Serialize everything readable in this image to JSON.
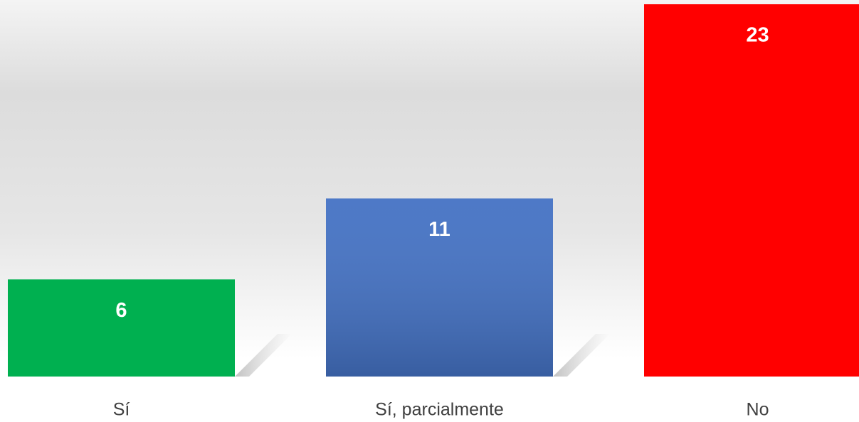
{
  "chart_data": {
    "type": "bar",
    "categories": [
      "Sí",
      "Sí, parcialmente",
      "No"
    ],
    "values": [
      6,
      11,
      23
    ],
    "colors": [
      "#00b050",
      "#4472c4",
      "#ff0000"
    ],
    "ylim": [
      0,
      23
    ]
  }
}
